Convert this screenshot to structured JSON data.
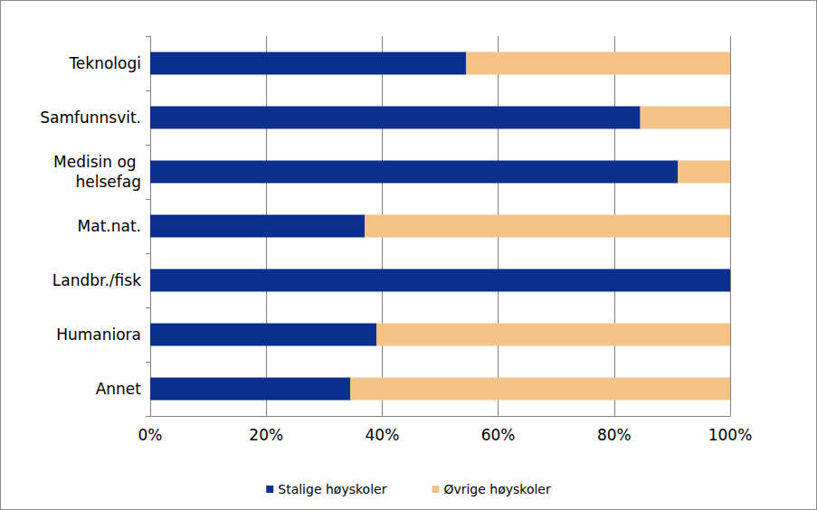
{
  "chart_data": {
    "type": "bar",
    "orientation": "horizontal",
    "stacked": true,
    "grid": true,
    "legend": "bottom",
    "categories": [
      "Teknologi",
      "Samfunnsvit.",
      "Medisin og helsefag",
      "Mat.nat.",
      "Landbr./fisk",
      "Humaniora",
      "Annet"
    ],
    "series": [
      {
        "name": "Stalige høyskoler",
        "color": "#0a2f8c",
        "values": [
          54.5,
          84.5,
          91,
          37,
          100,
          39,
          34.5
        ]
      },
      {
        "name": "Øvrige høyskoler",
        "color": "#f6c387",
        "values": [
          45.5,
          15.5,
          9,
          63,
          0,
          61,
          65.5
        ]
      }
    ],
    "xlim": [
      0,
      100
    ],
    "xticks": [
      {
        "value": 0,
        "label": "0%"
      },
      {
        "value": 20,
        "label": "20%"
      },
      {
        "value": 40,
        "label": "40%"
      },
      {
        "value": 60,
        "label": "60%"
      },
      {
        "value": 80,
        "label": "80%"
      },
      {
        "value": 100,
        "label": "100%"
      }
    ]
  }
}
